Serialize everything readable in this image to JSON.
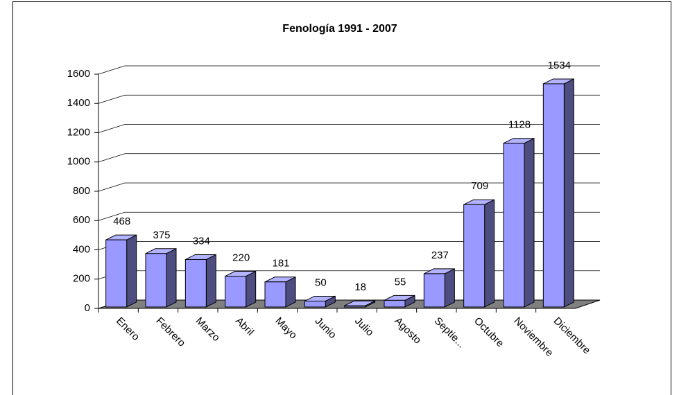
{
  "chart_data": {
    "type": "bar3d",
    "title": "Fenología 1991 - 2007",
    "categories": [
      "Enero",
      "Febrero",
      "Marzo",
      "Abril",
      "Mayo",
      "Junio",
      "Julio",
      "Agosto",
      "Septie...",
      "Octubre",
      "Noviembre",
      "Diciembre"
    ],
    "values": [
      468,
      375,
      334,
      220,
      181,
      50,
      18,
      55,
      237,
      709,
      1128,
      1534
    ],
    "color": "#9999ff",
    "side_color": "#4d4d80",
    "top_color": "#b3b3ff",
    "floor_color": "#808080",
    "ylim": [
      0,
      1600
    ],
    "yticks": [
      0,
      200,
      400,
      600,
      800,
      1000,
      1200,
      1400,
      1600
    ],
    "grid": true
  }
}
